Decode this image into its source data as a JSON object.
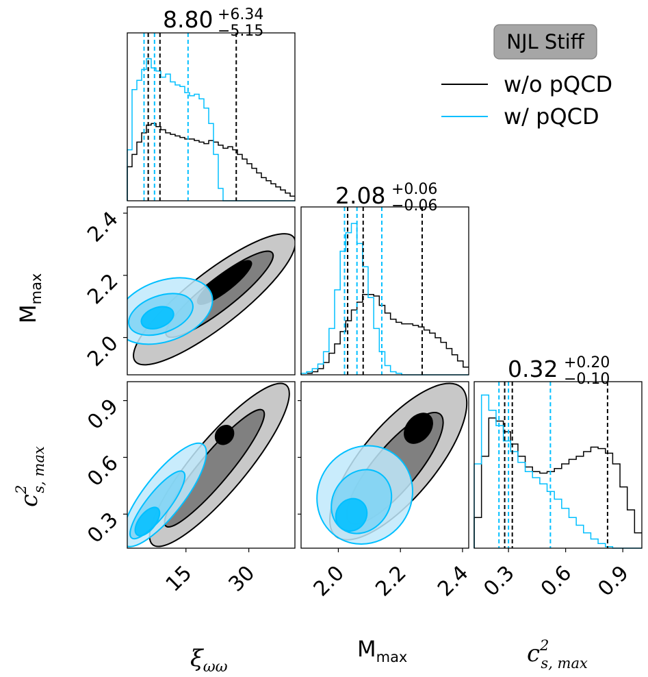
{
  "chart_data": {
    "type": "corner",
    "badge": "NJL Stiff",
    "legend": [
      {
        "label": "w/o pQCD",
        "color": "#000000"
      },
      {
        "label": "w/ pQCD",
        "color": "#00bfff"
      }
    ],
    "parameters": [
      {
        "name": "xi_ww",
        "axis_label_main": "ξ",
        "axis_label_sub": "ωω",
        "range": [
          1,
          41
        ],
        "ticks": [
          15,
          30
        ],
        "tick_labels": [
          "15",
          "30"
        ],
        "title_value": "8.80",
        "title_plus": "+6.34",
        "title_minus": "−5.15",
        "quantiles_black": [
          6.0,
          8.8,
          27.0
        ],
        "quantiles_blue": [
          5.0,
          7.5,
          15.5
        ]
      },
      {
        "name": "M_max",
        "axis_label_main": "M",
        "axis_label_sub": "max",
        "range": [
          1.88,
          2.42
        ],
        "ticks": [
          2.0,
          2.2,
          2.4
        ],
        "tick_labels": [
          "2.0",
          "2.2",
          "2.4"
        ],
        "title_value": "2.08",
        "title_plus": "+0.06",
        "title_minus": "−0.06",
        "quantiles_black": [
          2.03,
          2.08,
          2.27
        ],
        "quantiles_blue": [
          2.02,
          2.06,
          2.14
        ]
      },
      {
        "name": "cs2_max",
        "axis_label_main": "c",
        "axis_label_sub": "s, max",
        "axis_label_sup": "2",
        "range": [
          0.12,
          1.0
        ],
        "ticks": [
          0.3,
          0.6,
          0.9
        ],
        "tick_labels": [
          "0.3",
          "0.6",
          "0.9"
        ],
        "title_value": "0.32",
        "title_plus": "+0.20",
        "title_minus": "−0.10",
        "quantiles_black": [
          0.28,
          0.32,
          0.82
        ],
        "quantiles_blue": [
          0.25,
          0.3,
          0.52
        ]
      }
    ],
    "histograms": {
      "xi_ww": {
        "black": [
          0.22,
          0.3,
          0.38,
          0.44,
          0.49,
          0.5,
          0.48,
          0.46,
          0.44,
          0.43,
          0.42,
          0.41,
          0.4,
          0.4,
          0.39,
          0.38,
          0.37,
          0.39,
          0.38,
          0.36,
          0.34,
          0.35,
          0.33,
          0.3,
          0.27,
          0.24,
          0.21,
          0.18,
          0.15,
          0.13,
          0.11,
          0.09,
          0.07,
          0.05,
          0.03
        ],
        "blue": [
          0.33,
          0.72,
          0.78,
          0.85,
          0.92,
          0.86,
          0.84,
          0.8,
          0.82,
          0.77,
          0.75,
          0.74,
          0.7,
          0.68,
          0.69,
          0.66,
          0.6,
          0.5,
          0.3,
          0.08,
          0,
          0,
          0,
          0,
          0,
          0,
          0,
          0,
          0,
          0,
          0,
          0,
          0,
          0,
          0
        ]
      },
      "M_max": {
        "black": [
          0.01,
          0.01,
          0.02,
          0.04,
          0.08,
          0.14,
          0.2,
          0.28,
          0.35,
          0.42,
          0.47,
          0.52,
          0.52,
          0.51,
          0.45,
          0.4,
          0.36,
          0.34,
          0.33,
          0.33,
          0.32,
          0.31,
          0.29,
          0.27,
          0.24,
          0.21,
          0.17,
          0.13,
          0.09,
          0.05
        ],
        "blue": [
          0.01,
          0.02,
          0.04,
          0.07,
          0.15,
          0.3,
          0.55,
          0.8,
          0.92,
          0.98,
          0.85,
          0.7,
          0.5,
          0.3,
          0.15,
          0.06,
          0.02,
          0.01,
          0,
          0,
          0,
          0,
          0,
          0,
          0,
          0,
          0,
          0,
          0,
          0
        ]
      },
      "cs2_max": {
        "black": [
          0.2,
          0.6,
          0.85,
          0.83,
          0.76,
          0.68,
          0.6,
          0.53,
          0.5,
          0.49,
          0.5,
          0.52,
          0.55,
          0.58,
          0.6,
          0.63,
          0.66,
          0.65,
          0.62,
          0.55,
          0.4,
          0.25,
          0.1
        ],
        "blue": [
          0.55,
          1.0,
          0.9,
          0.8,
          0.7,
          0.63,
          0.56,
          0.5,
          0.46,
          0.42,
          0.37,
          0.32,
          0.26,
          0.2,
          0.15,
          0.1,
          0.06,
          0.03,
          0.01,
          0,
          0,
          0,
          0
        ]
      }
    }
  }
}
